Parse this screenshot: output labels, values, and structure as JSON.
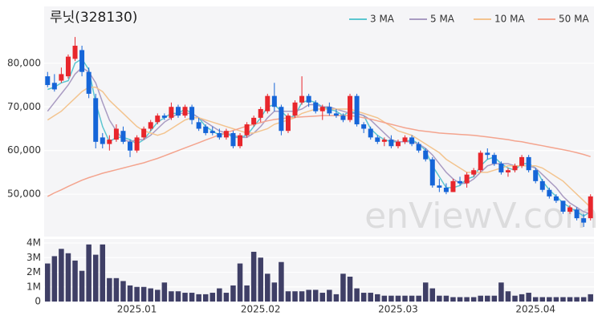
{
  "chart_data": [
    {
      "type": "candlestick",
      "title": "루닛(328130)",
      "watermark": "enViewV.com",
      "up_color": "#e8262c",
      "down_color": "#1565d8",
      "open": [
        77000,
        75500,
        76000,
        77000,
        81000,
        83000,
        78000,
        72000,
        63000,
        61500,
        62500,
        64500,
        62000,
        60000,
        63000,
        65000,
        66500,
        68000,
        67500,
        70000,
        68000,
        70000,
        66500,
        65500,
        64500,
        64000,
        63000,
        64000,
        61000,
        63500,
        66000,
        67500,
        69000,
        72500,
        70000,
        64500,
        68000,
        71000,
        72500,
        71000,
        69000,
        70000,
        68500,
        68000,
        67000,
        72500,
        66000,
        65000,
        63000,
        62000,
        62500,
        61000,
        62000,
        63000,
        61500,
        60000,
        58000,
        52000,
        51500,
        50500,
        53000,
        52500,
        54500,
        55500,
        59500,
        59000,
        57000,
        55000,
        55500,
        56500,
        58500,
        55500,
        53000,
        51000,
        49500,
        48500,
        46000,
        46500,
        44500,
        44500
      ],
      "high": [
        78000,
        77500,
        79000,
        82000,
        86000,
        84000,
        79000,
        73000,
        64000,
        63500,
        66000,
        65500,
        62500,
        63500,
        65500,
        67000,
        68500,
        68500,
        71000,
        70500,
        70500,
        70500,
        67500,
        66000,
        65500,
        65000,
        65000,
        64500,
        64000,
        66500,
        68000,
        70000,
        73000,
        75500,
        70500,
        68500,
        71500,
        77000,
        73000,
        71500,
        70500,
        71000,
        69500,
        68500,
        73000,
        73000,
        66500,
        65500,
        63500,
        63000,
        63500,
        62500,
        63500,
        63500,
        62000,
        60500,
        58500,
        53500,
        52500,
        53500,
        54000,
        55000,
        56000,
        60000,
        60500,
        59500,
        57500,
        56000,
        57000,
        59000,
        59000,
        56000,
        53500,
        51500,
        50000,
        48500,
        47500,
        47000,
        45500,
        50000
      ],
      "low": [
        74500,
        73500,
        75500,
        76500,
        80500,
        77000,
        72000,
        60500,
        60500,
        60000,
        62000,
        61500,
        58500,
        59500,
        62500,
        64500,
        66000,
        67000,
        67000,
        67500,
        67500,
        66000,
        64500,
        63500,
        63500,
        62500,
        62500,
        60500,
        60500,
        63000,
        65500,
        66500,
        68500,
        69000,
        63500,
        64000,
        67500,
        70500,
        70000,
        68500,
        67000,
        68000,
        67500,
        66500,
        66500,
        65500,
        64000,
        62500,
        61500,
        61000,
        60500,
        60500,
        61500,
        61000,
        59500,
        57500,
        51500,
        50500,
        50000,
        50500,
        52000,
        51500,
        54000,
        55000,
        58000,
        56500,
        54500,
        54000,
        55000,
        56000,
        55000,
        52500,
        50500,
        49000,
        48000,
        45500,
        45500,
        44000,
        42500,
        44000
      ],
      "close": [
        75000,
        74000,
        77500,
        81500,
        84000,
        78000,
        73000,
        62000,
        61500,
        62500,
        65000,
        62000,
        60000,
        63000,
        65000,
        66500,
        68000,
        67500,
        70000,
        68000,
        70000,
        67000,
        65000,
        64000,
        64000,
        63000,
        64500,
        61000,
        63500,
        66000,
        67500,
        69500,
        72500,
        70000,
        64500,
        68000,
        71000,
        72500,
        71000,
        69000,
        70000,
        68500,
        68000,
        67000,
        72500,
        66000,
        65000,
        63000,
        62000,
        62500,
        61000,
        62000,
        63000,
        61500,
        60000,
        58000,
        52000,
        51500,
        50500,
        53000,
        52500,
        54500,
        55500,
        59500,
        59000,
        57000,
        55000,
        55500,
        56500,
        58500,
        55500,
        53000,
        51000,
        49500,
        48500,
        46000,
        47000,
        44500,
        43500,
        49500
      ],
      "series": [
        {
          "name": "3 MA",
          "color": "#5cc6d0",
          "values": [
            74000,
            74500,
            75500,
            76000,
            80000,
            81000,
            78500,
            71000,
            65500,
            62000,
            63000,
            63000,
            62500,
            61500,
            62500,
            64500,
            66500,
            67500,
            68500,
            68500,
            69500,
            68500,
            67500,
            65500,
            64500,
            63500,
            64000,
            63000,
            63000,
            63500,
            65500,
            67500,
            70000,
            70500,
            69000,
            67500,
            68000,
            71000,
            71500,
            71000,
            70000,
            69500,
            69000,
            68000,
            69000,
            68500,
            68000,
            65000,
            63500,
            62500,
            62000,
            62000,
            62000,
            62500,
            61500,
            60000,
            56500,
            54000,
            51500,
            51500,
            52000,
            53500,
            54000,
            56500,
            58000,
            58500,
            57000,
            56000,
            55500,
            57000,
            57000,
            56000,
            53000,
            51000,
            49500,
            48000,
            47000,
            46000,
            45000,
            46000
          ]
        },
        {
          "name": "5 MA",
          "color": "#a99bc2",
          "values": [
            69000,
            71000,
            73000,
            75000,
            77500,
            79000,
            78000,
            75500,
            71000,
            67000,
            64500,
            62500,
            62000,
            62500,
            62500,
            63500,
            65000,
            66500,
            67500,
            68500,
            68500,
            68500,
            67500,
            66500,
            65500,
            64500,
            64000,
            63500,
            63000,
            63000,
            64000,
            65500,
            67500,
            69000,
            69000,
            69000,
            69000,
            69500,
            70500,
            70500,
            70000,
            70000,
            69500,
            69000,
            68500,
            68500,
            68000,
            67000,
            65500,
            64000,
            62500,
            62000,
            62000,
            62000,
            61500,
            60500,
            59000,
            57000,
            55000,
            53500,
            52500,
            52500,
            53500,
            55000,
            56500,
            57000,
            57000,
            57000,
            56500,
            56500,
            56500,
            56000,
            54500,
            53000,
            51500,
            49500,
            48000,
            47000,
            46000,
            45500
          ]
        },
        {
          "name": "10 MA",
          "color": "#f3c48f",
          "values": [
            67000,
            68000,
            69000,
            70500,
            72000,
            73500,
            74500,
            74500,
            73500,
            71500,
            70000,
            68500,
            67000,
            65500,
            64500,
            64000,
            63500,
            64000,
            65000,
            66000,
            67000,
            67500,
            67500,
            67000,
            66500,
            66000,
            65500,
            65000,
            64500,
            64000,
            64000,
            64500,
            65000,
            66000,
            66500,
            67000,
            67500,
            68500,
            69000,
            69500,
            69500,
            69500,
            69500,
            69500,
            69500,
            69000,
            68500,
            68000,
            67500,
            66500,
            65500,
            64500,
            64000,
            63500,
            62500,
            61500,
            60500,
            59500,
            58000,
            57000,
            56000,
            55000,
            55000,
            55000,
            55000,
            55500,
            56000,
            56500,
            56500,
            56500,
            56500,
            56500,
            56000,
            55000,
            54000,
            53000,
            51500,
            50000,
            48500,
            47000
          ]
        },
        {
          "name": "50 MA",
          "color": "#f4a48e",
          "values": [
            49500,
            50300,
            51000,
            51800,
            52500,
            53200,
            53800,
            54300,
            54800,
            55200,
            55600,
            56000,
            56400,
            56800,
            57200,
            57700,
            58200,
            58800,
            59400,
            60000,
            60600,
            61200,
            61800,
            62400,
            63000,
            63600,
            64100,
            64600,
            65100,
            65600,
            66000,
            66400,
            66800,
            67100,
            67300,
            67500,
            67600,
            67700,
            67800,
            67900,
            68000,
            68000,
            68000,
            68000,
            68000,
            67800,
            67500,
            67200,
            66800,
            66400,
            66000,
            65600,
            65200,
            64900,
            64600,
            64400,
            64200,
            64000,
            63900,
            63800,
            63700,
            63600,
            63500,
            63300,
            63100,
            62900,
            62700,
            62500,
            62200,
            62000,
            61700,
            61400,
            61100,
            60800,
            60500,
            60200,
            59900,
            59500,
            59100,
            58600
          ]
        }
      ],
      "ylim": [
        40300,
        93000
      ],
      "yticks": [
        {
          "value": 50000,
          "label": "50,000"
        },
        {
          "value": 60000,
          "label": "60,000"
        },
        {
          "value": 70000,
          "label": "70,000"
        },
        {
          "value": 80000,
          "label": "80,000"
        }
      ],
      "grid": true
    },
    {
      "type": "bar",
      "color": "#3f3f66",
      "categories": [
        null,
        null,
        null,
        null,
        null,
        null,
        null,
        null,
        null,
        null,
        null,
        null,
        null,
        "2025.01",
        null,
        null,
        null,
        null,
        null,
        null,
        null,
        null,
        null,
        null,
        null,
        null,
        null,
        null,
        null,
        null,
        null,
        "2025.02",
        null,
        null,
        null,
        null,
        null,
        null,
        null,
        null,
        null,
        null,
        null,
        null,
        null,
        null,
        null,
        null,
        null,
        null,
        null,
        "2025.03",
        null,
        null,
        null,
        null,
        null,
        null,
        null,
        null,
        null,
        null,
        null,
        null,
        null,
        null,
        null,
        null,
        null,
        null,
        null,
        "2025.04",
        null,
        null,
        null,
        null,
        null,
        null,
        null,
        null
      ],
      "values": [
        2600000,
        3100000,
        3600000,
        3300000,
        2800000,
        2100000,
        3900000,
        3200000,
        3900000,
        1600000,
        1600000,
        1400000,
        1100000,
        1000000,
        1000000,
        900000,
        800000,
        1300000,
        700000,
        700000,
        600000,
        600000,
        500000,
        500000,
        600000,
        900000,
        600000,
        1100000,
        2600000,
        1100000,
        3400000,
        3000000,
        1900000,
        1300000,
        2700000,
        700000,
        700000,
        700000,
        800000,
        800000,
        600000,
        800000,
        500000,
        1900000,
        1700000,
        900000,
        600000,
        600000,
        500000,
        400000,
        400000,
        400000,
        400000,
        400000,
        400000,
        1300000,
        900000,
        400000,
        400000,
        300000,
        300000,
        300000,
        300000,
        400000,
        400000,
        400000,
        1300000,
        700000,
        400000,
        500000,
        600000,
        300000,
        300000,
        300000,
        300000,
        300000,
        300000,
        300000,
        300000,
        500000
      ],
      "ylim": [
        0,
        4000000
      ],
      "yticks": [
        {
          "value": 0,
          "label": "0"
        },
        {
          "value": 1000000,
          "label": "1M"
        },
        {
          "value": 2000000,
          "label": "2M"
        },
        {
          "value": 3000000,
          "label": "3M"
        },
        {
          "value": 4000000,
          "label": "4M"
        }
      ],
      "grid": true
    }
  ]
}
